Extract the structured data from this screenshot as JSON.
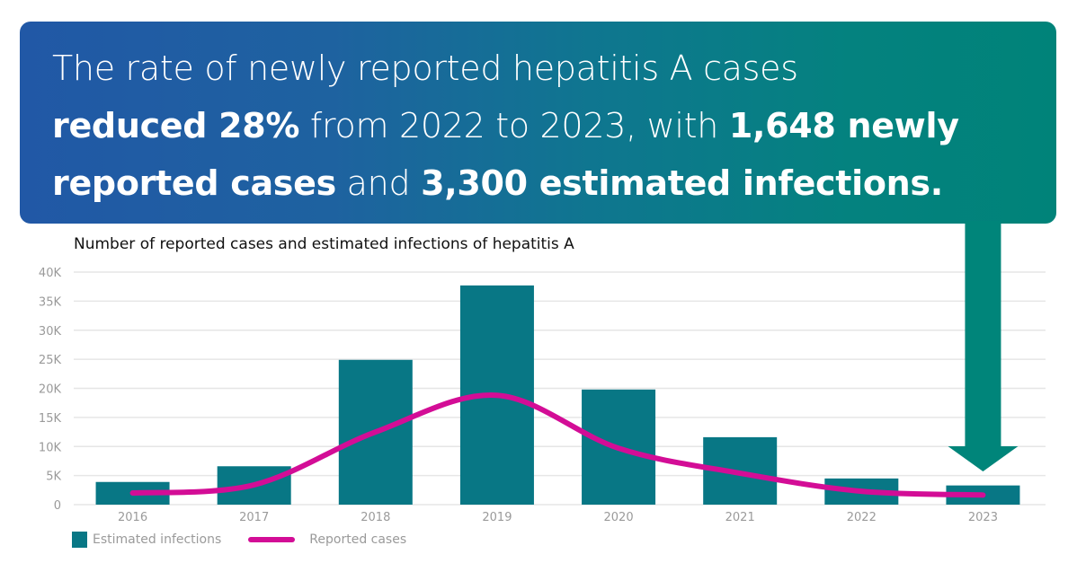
{
  "banner": {
    "line1": "The rate of newly reported hepatitis A cases",
    "line2_bold1": "reduced 28%",
    "line2_text": " from 2022 to 2023, with ",
    "line2_bold2": "1,648 newly",
    "line3_bold1": "reported cases",
    "line3_text": " and ",
    "line3_bold2": "3,300 estimated infections."
  },
  "colors": {
    "bar": "#087785",
    "line": "#d30d96",
    "arrow": "#00857a",
    "grid": "#e6e6e6"
  },
  "chart_data": {
    "type": "bar",
    "title": "Number of reported cases and estimated infections of hepatitis A",
    "categories": [
      "2016",
      "2017",
      "2018",
      "2019",
      "2020",
      "2021",
      "2022",
      "2023"
    ],
    "series": [
      {
        "name": "Estimated infections",
        "type": "bar",
        "values": [
          3900,
          6600,
          24900,
          37700,
          19800,
          11600,
          4500,
          3300
        ]
      },
      {
        "name": "Reported cases",
        "type": "line",
        "smooth": true,
        "values": [
          2000,
          3400,
          12500,
          18800,
          9700,
          5400,
          2300,
          1648
        ]
      }
    ],
    "yticks": [
      "0",
      "5K",
      "10K",
      "15K",
      "20K",
      "25K",
      "30K",
      "35K",
      "40K"
    ],
    "ylim": [
      0,
      40000
    ],
    "xlabel": "",
    "ylabel": "",
    "grid": true,
    "legend": "bottom-left",
    "annotation": "down arrow pointing to 2023"
  }
}
